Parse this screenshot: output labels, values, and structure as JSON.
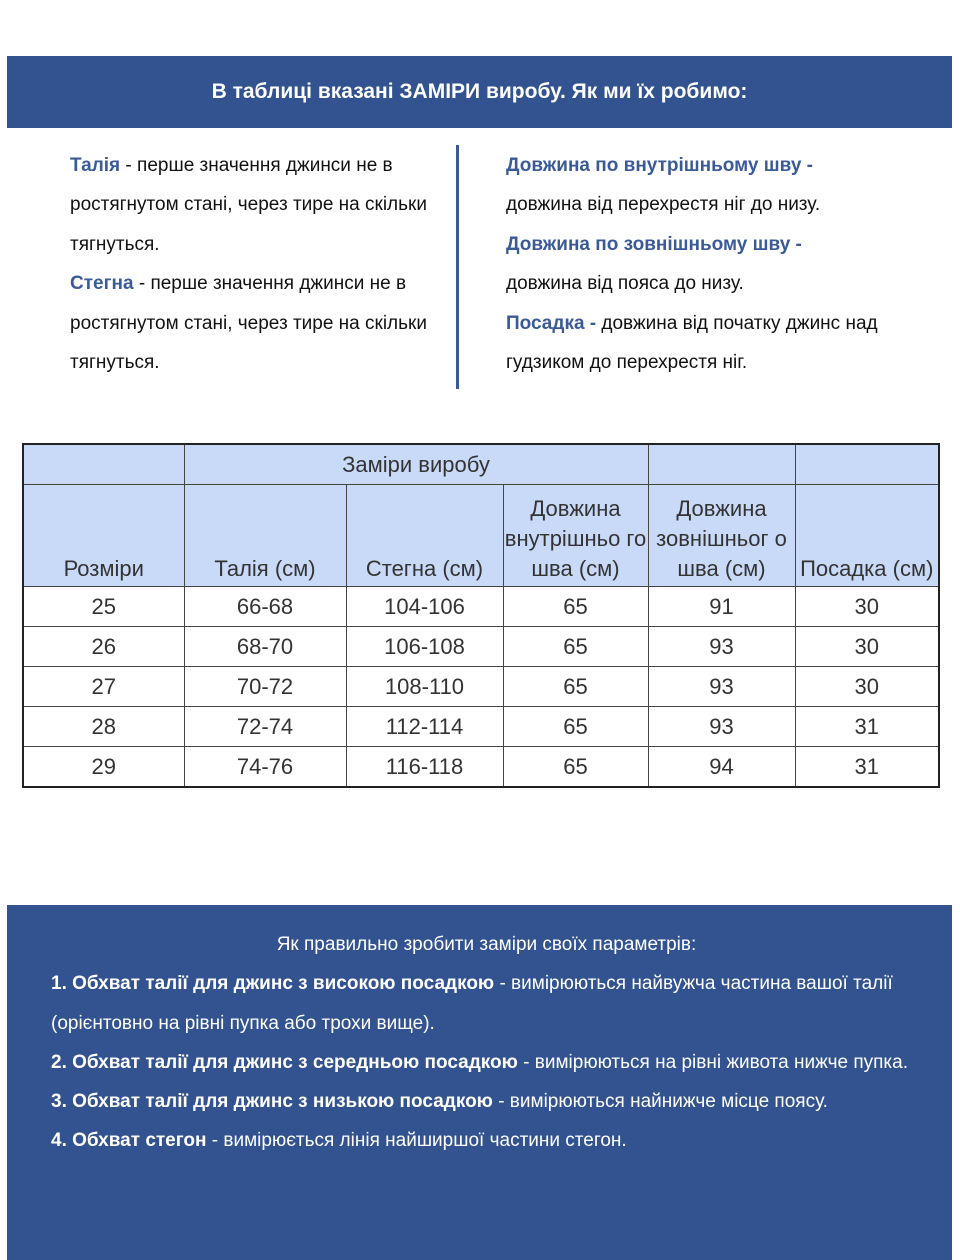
{
  "banner": {
    "title": "В таблиці вказані ЗАМІРИ виробу. Як ми їх робимо:"
  },
  "definitions": {
    "left": [
      {
        "term": "Талія",
        "text": " - перше значення джинси не в ростягнутом стані, через тире на скільки тягнуться."
      },
      {
        "term": "Стегна",
        "text": " - перше значення джинси не в ростягнутом стані, через тире на скільки тягнуться."
      }
    ],
    "right": [
      {
        "term": "Довжина по внутрішньому шву -",
        "text": " довжина від перехрестя ніг до низу."
      },
      {
        "term": "Довжина по зовнішньому шву -",
        "text": " довжина від пояса до низу."
      },
      {
        "term": "Посадка -",
        "text": " довжина від початку джинс над гудзиком до перехрестя ніг."
      }
    ]
  },
  "table": {
    "group_header": "Заміри виробу",
    "columns": [
      "Розміри",
      "Талія (см)",
      "Стегна (см)",
      "Довжина внутрішньо го шва (см)",
      "Довжина зовнішньог о шва (см)",
      "Посадка (см)"
    ],
    "rows": [
      [
        "25",
        "66-68",
        "104-106",
        "65",
        "91",
        "30"
      ],
      [
        "26",
        "68-70",
        "106-108",
        "65",
        "93",
        "30"
      ],
      [
        "27",
        "70-72",
        "108-110",
        "65",
        "93",
        "30"
      ],
      [
        "28",
        "72-74",
        "112-114",
        "65",
        "93",
        "31"
      ],
      [
        "29",
        "74-76",
        "116-118",
        "65",
        "94",
        "31"
      ]
    ]
  },
  "howto": {
    "title": "Як правильно зробити заміри своїх параметрів:",
    "items": [
      {
        "term": "1. Обхват талії для джинс з високою посадкою",
        "text": " - вимірюються найвужча частина вашої талії (орієнтовно на рівні пупка або трохи вище)."
      },
      {
        "term": "2. Обхват талії для джинс з середньою посадкою",
        "text": " - вимірюються на рівні живота нижче пупка."
      },
      {
        "term": "3. Обхват талії для джинс з низькою посадкою",
        "text": " - вимірюються найнижче місце поясу."
      },
      {
        "term": "4. Обхват стегон",
        "text": " - вимірюється лінія найширшої частини стегон."
      }
    ]
  },
  "colors": {
    "banner": "#32538f",
    "highlight": "#3a5a98",
    "table_header": "#c9daf8"
  }
}
